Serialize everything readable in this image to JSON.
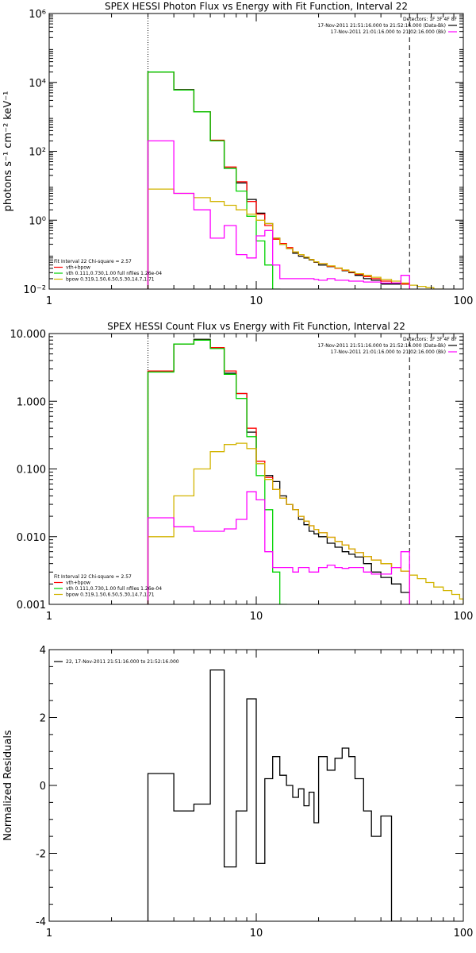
{
  "colors": {
    "data": "#000000",
    "total": "#ff0000",
    "vth": "#00d200",
    "bpow": "#d2b400",
    "background": "#ff00ff",
    "axis": "#000000"
  },
  "chart_data": [
    {
      "id": "photon",
      "type": "line",
      "title": "SPEX HESSI Photon Flux vs Energy with Fit Function, Interval 22",
      "ylabel": "photons s⁻¹ cm⁻² keV⁻¹",
      "xlabel": "",
      "xscale": "log",
      "yscale": "log",
      "xlim": [
        1,
        100
      ],
      "ylim": [
        0.01,
        1000000
      ],
      "xticks": [
        {
          "v": 1,
          "label": "1"
        },
        {
          "v": 10,
          "label": "10"
        },
        {
          "v": 100,
          "label": "100"
        }
      ],
      "yticks": [
        {
          "v": 0.01,
          "label": "10⁻²"
        },
        {
          "v": 1,
          "label": "10⁰"
        },
        {
          "v": 100,
          "label": "10²"
        },
        {
          "v": 10000,
          "label": "10⁴"
        },
        {
          "v": 1000000,
          "label": "10⁶"
        }
      ],
      "vlines": [
        {
          "x": 3,
          "style": "dotted"
        },
        {
          "x": 55,
          "style": "dashed"
        }
      ],
      "header_lines": [
        "Detectors: 1F 3F 4F 8F",
        "17-Nov-2011 21:51:16.000 to 21:52:16.000 (Data-Bk)",
        "17-Nov-2011 21:01:16.000 to 21:02:16.000 (Bk)"
      ],
      "header_colors": [
        "none",
        "#000000",
        "#ff00ff"
      ],
      "legend_lines": [
        "Fit Interval 22   Chi-square = 2.57",
        "vth+bpow",
        "vth 0.111,0.730,1.00  full nfiles 1.26e-04",
        "bpow 0.319,1.50,6.50,5.30,14.7,1.71"
      ],
      "legend_colors": [
        "none",
        "#ff0000",
        "#00d200",
        "#d2b400"
      ],
      "edges": [
        3,
        4,
        5,
        6,
        7,
        8,
        9,
        10,
        11,
        12,
        13,
        14,
        15,
        16,
        17,
        18,
        19,
        20,
        22,
        24,
        26,
        28,
        30,
        33,
        36,
        40,
        45,
        50,
        55,
        60,
        66,
        72,
        80
      ],
      "series": [
        {
          "key": "data",
          "color": "#000000",
          "values": [
            20000,
            6200,
            1400,
            200,
            32,
            12,
            4,
            1.6,
            0.8,
            0.3,
            0.2,
            0.15,
            0.11,
            0.09,
            0.08,
            0.07,
            0.06,
            0.05,
            0.045,
            0.04,
            0.034,
            0.03,
            0.025,
            0.02,
            0.018,
            0.014,
            0.014,
            0.014,
            null,
            null,
            null,
            null
          ]
        },
        {
          "key": "total",
          "color": "#ff0000",
          "values": [
            20000,
            6000,
            1400,
            210,
            35,
            13,
            3.5,
            1.5,
            0.7,
            0.28,
            0.21,
            0.16,
            0.12,
            0.1,
            0.085,
            0.072,
            0.062,
            0.055,
            0.046,
            0.04,
            0.035,
            0.031,
            0.027,
            0.023,
            0.02,
            0.017,
            0.015,
            0.014,
            null,
            null,
            null,
            null
          ]
        },
        {
          "key": "vth",
          "color": "#00d200",
          "values": [
            20000,
            6000,
            1400,
            200,
            32,
            7,
            1.3,
            0.25,
            0.05,
            0.009,
            null,
            null,
            null,
            null,
            null,
            null,
            null,
            null,
            null,
            null,
            null,
            null,
            null,
            null,
            null,
            null,
            null,
            null,
            null,
            null,
            null,
            null
          ]
        },
        {
          "key": "bpow",
          "color": "#d2b400",
          "values": [
            8,
            6,
            4.5,
            3.5,
            2.7,
            2,
            1.5,
            1,
            0.8,
            0.3,
            0.2,
            0.15,
            0.12,
            0.1,
            0.085,
            0.072,
            0.062,
            0.055,
            0.047,
            0.041,
            0.036,
            0.032,
            0.028,
            0.025,
            0.022,
            0.019,
            0.017,
            0.015,
            0.013,
            0.012,
            0.011,
            0.01
          ]
        },
        {
          "key": "bk",
          "color": "#ff00ff",
          "values": [
            200,
            6,
            2,
            0.3,
            0.7,
            0.1,
            0.08,
            0.35,
            0.5,
            0.05,
            0.02,
            0.02,
            0.02,
            0.02,
            0.02,
            0.02,
            0.019,
            0.018,
            0.02,
            0.018,
            0.018,
            0.017,
            0.017,
            0.016,
            0.016,
            0.015,
            0.015,
            0.025,
            null,
            null,
            null,
            null
          ]
        }
      ]
    },
    {
      "id": "count",
      "type": "line",
      "title": "SPEX HESSI Count Flux vs Energy with Fit Function, Interval 22",
      "ylabel": "",
      "xlabel": "",
      "xscale": "log",
      "yscale": "log",
      "xlim": [
        1,
        100
      ],
      "ylim": [
        0.001,
        10
      ],
      "xticks": [
        {
          "v": 1,
          "label": "1"
        },
        {
          "v": 10,
          "label": "10"
        },
        {
          "v": 100,
          "label": "100"
        }
      ],
      "yticks": [
        {
          "v": 0.001,
          "label": "0.001"
        },
        {
          "v": 0.01,
          "label": "0.010"
        },
        {
          "v": 0.1,
          "label": "0.100"
        },
        {
          "v": 1,
          "label": "1.000"
        },
        {
          "v": 10,
          "label": "10.000"
        }
      ],
      "vlines": [
        {
          "x": 3,
          "style": "dotted"
        },
        {
          "x": 55,
          "style": "dashed"
        }
      ],
      "header_lines": [
        "Detectors: 1F 3F 4F 8F",
        "17-Nov-2011 21:51:16.000 to 21:52:16.000 (Data-Bk)",
        "17-Nov-2011 21:01:16.000 to 21:02:16.000 (Bk)"
      ],
      "header_colors": [
        "none",
        "#000000",
        "#ff00ff"
      ],
      "legend_lines": [
        "Fit Interval 22   Chi-square = 2.57",
        "vth+bpow",
        "vth 0.111,0.730,1.00  full nfiles 1.26e-04",
        "bpow 0.319,1.50,6.50,5.30,14.7,1.71"
      ],
      "legend_colors": [
        "none",
        "#ff0000",
        "#00d200",
        "#d2b400"
      ],
      "edges": [
        3,
        4,
        5,
        6,
        7,
        8,
        9,
        10,
        11,
        12,
        13,
        14,
        15,
        16,
        17,
        18,
        19,
        20,
        22,
        24,
        26,
        28,
        30,
        33,
        36,
        40,
        45,
        50,
        55,
        60,
        66,
        72,
        80,
        88,
        96,
        100
      ],
      "series": [
        {
          "key": "data",
          "color": "#000000",
          "values": [
            2.8,
            7,
            8.2,
            6,
            2.6,
            1.3,
            0.35,
            0.12,
            0.08,
            0.065,
            0.04,
            0.03,
            0.025,
            0.018,
            0.015,
            0.012,
            0.011,
            0.01,
            0.008,
            0.007,
            0.006,
            0.0055,
            0.005,
            0.004,
            0.003,
            0.0025,
            0.002,
            0.0015,
            null,
            null,
            null,
            null,
            null,
            null,
            null
          ]
        },
        {
          "key": "total",
          "color": "#ff0000",
          "values": [
            2.8,
            7,
            8.0,
            6.2,
            2.8,
            1.3,
            0.4,
            0.13,
            0.075,
            0.05,
            0.037,
            0.03,
            0.025,
            0.02,
            0.017,
            0.0145,
            0.0128,
            0.0114,
            0.0098,
            0.0085,
            0.0075,
            0.0066,
            0.0058,
            0.0051,
            0.0045,
            0.004,
            0.0035,
            0.0031,
            null,
            null,
            null,
            null,
            null,
            null,
            null
          ]
        },
        {
          "key": "vth",
          "color": "#00d200",
          "values": [
            2.7,
            7,
            8,
            6,
            2.5,
            1.1,
            0.3,
            0.08,
            0.025,
            0.003,
            0.001,
            null,
            null,
            null,
            null,
            null,
            null,
            null,
            null,
            null,
            null,
            null,
            null,
            null,
            null,
            null,
            null,
            null,
            null,
            null,
            null,
            null,
            null,
            null,
            null
          ]
        },
        {
          "key": "bpow",
          "color": "#d2b400",
          "values": [
            0.01,
            0.04,
            0.1,
            0.18,
            0.23,
            0.24,
            0.2,
            0.12,
            0.07,
            0.05,
            0.037,
            0.03,
            0.025,
            0.02,
            0.017,
            0.0145,
            0.0128,
            0.0114,
            0.0098,
            0.0085,
            0.0075,
            0.0066,
            0.0058,
            0.0051,
            0.0045,
            0.004,
            0.0035,
            0.0031,
            0.0027,
            0.0024,
            0.0021,
            0.0018,
            0.0016,
            0.0014,
            0.0012
          ]
        },
        {
          "key": "bk",
          "color": "#ff00ff",
          "values": [
            0.019,
            0.014,
            0.012,
            0.012,
            0.013,
            0.018,
            0.046,
            0.035,
            0.006,
            0.0035,
            0.0035,
            0.0035,
            0.003,
            0.0035,
            0.0035,
            0.003,
            0.003,
            0.0035,
            0.0038,
            0.0035,
            0.0034,
            0.0035,
            0.0035,
            0.003,
            0.0028,
            0.0028,
            0.0035,
            0.006,
            null,
            null,
            null,
            null,
            null,
            null,
            null
          ]
        }
      ]
    },
    {
      "id": "resid",
      "type": "line",
      "title": "",
      "ylabel": "Normalized Residuals",
      "xlabel": "",
      "xscale": "log",
      "yscale": "linear",
      "xlim": [
        1,
        100
      ],
      "ylim": [
        -4,
        4
      ],
      "xticks": [
        {
          "v": 1,
          "label": "1"
        },
        {
          "v": 10,
          "label": "10"
        },
        {
          "v": 100,
          "label": "100"
        }
      ],
      "yticks": [
        {
          "v": -4,
          "label": "-4"
        },
        {
          "v": -2,
          "label": "-2"
        },
        {
          "v": 0,
          "label": "0"
        },
        {
          "v": 2,
          "label": "2"
        },
        {
          "v": 4,
          "label": "4"
        }
      ],
      "vlines": [],
      "header_lines": [],
      "header_colors": [],
      "legend_lines": [
        "22, 17-Nov-2011 21:51:16.000 to 21:52:16.000"
      ],
      "legend_colors": [
        "#000000"
      ],
      "edges": [
        3,
        4,
        5,
        6,
        7,
        8,
        9,
        10,
        11,
        12,
        13,
        14,
        15,
        16,
        17,
        18,
        19,
        20,
        22,
        24,
        26,
        28,
        30,
        33,
        36,
        40,
        45,
        50,
        55
      ],
      "series": [
        {
          "key": "resid",
          "color": "#000000",
          "values": [
            0.35,
            -0.75,
            -0.55,
            3.4,
            -2.4,
            -0.75,
            2.55,
            -2.3,
            0.2,
            0.85,
            0.3,
            0.0,
            -0.35,
            -0.1,
            -0.6,
            -0.2,
            -1.1,
            0.85,
            0.45,
            0.8,
            1.1,
            0.85,
            0.2,
            -0.75,
            -1.5,
            -0.9,
            -4.0,
            null
          ]
        }
      ]
    }
  ]
}
